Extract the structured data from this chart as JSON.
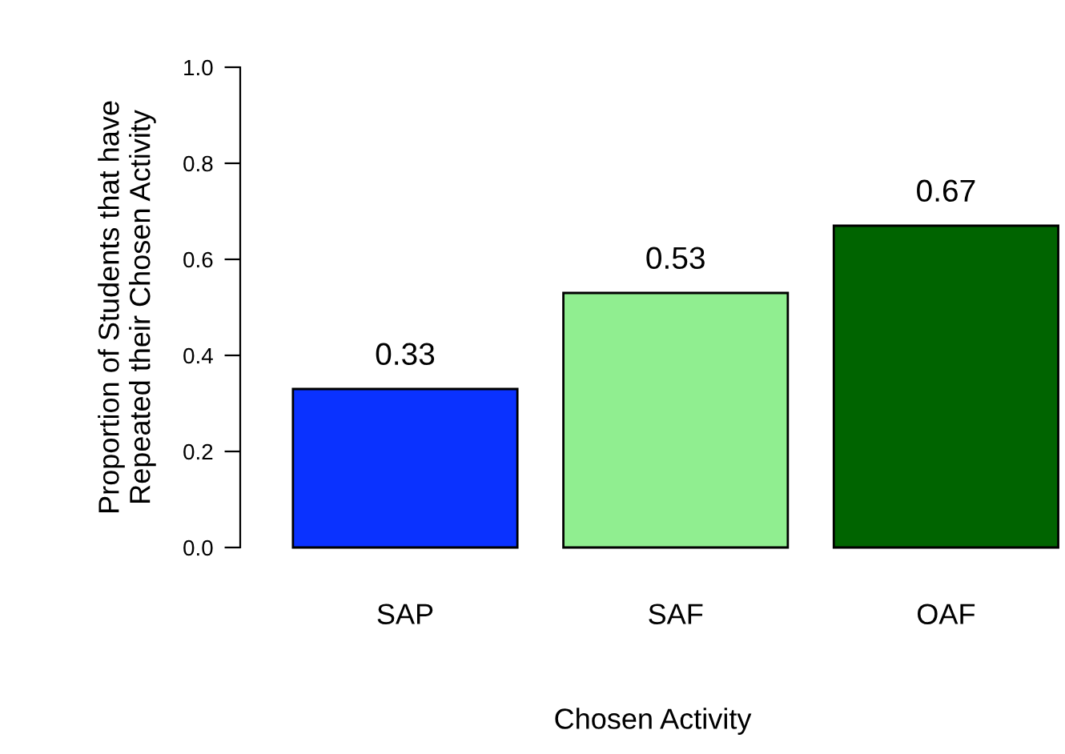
{
  "chart_data": {
    "type": "bar",
    "xlabel": "Chosen Activity",
    "ylabel": "Proportion of Students that have\nRepeated their Chosen Activity",
    "categories": [
      "SAP",
      "SAF",
      "OAF"
    ],
    "values": [
      0.33,
      0.53,
      0.67
    ],
    "colors": [
      "#0a32ff",
      "#90ee90",
      "#006400"
    ],
    "data_labels": true,
    "ylim": [
      0,
      1
    ],
    "yticks": [
      {
        "value": 0,
        "label": "0.0"
      },
      0.2,
      0.4,
      0.6,
      0.8,
      {
        "value": 1,
        "label": "1.0"
      }
    ],
    "grid": false,
    "legend": false
  }
}
